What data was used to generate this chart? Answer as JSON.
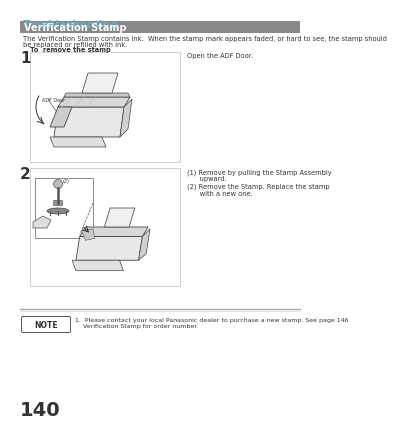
{
  "bg_color": "#ffffff",
  "title_section": "Troubleshooting",
  "title_color": "#6ab0c8",
  "header_text": "Verification Stamp",
  "header_bg": "#888888",
  "header_text_color": "#ffffff",
  "body_text1": "The Verification Stamp contains ink.  When the stamp mark appears faded, or hard to see, the stamp should",
  "body_text2": "be replaced or refilled with ink.",
  "subtitle": "To  remove the stamp",
  "step1_label": "1",
  "step1_text": "Open the ADF Door.",
  "step1_img_label": "ADF Door",
  "step2_label": "2",
  "step2_text1": "(1) Remove by pulling the Stamp Assembly",
  "step2_text1b": "      upward.",
  "step2_text2": "(2) Remove the Stamp. Replace the stamp",
  "step2_text2b": "      with a new one.",
  "note_label": "NOTE",
  "note_text1": "1.  Please contact your local Panasonic dealer to purchase a new stamp. See page 146",
  "note_text2": "    Verification Stamp for order number.",
  "page_number": "140",
  "separator_color": "#aaaaaa",
  "box_border_color": "#bbbbbb",
  "text_color": "#333333",
  "body_font_size": 4.8,
  "step_font_size": 11,
  "note_font_size": 4.5
}
